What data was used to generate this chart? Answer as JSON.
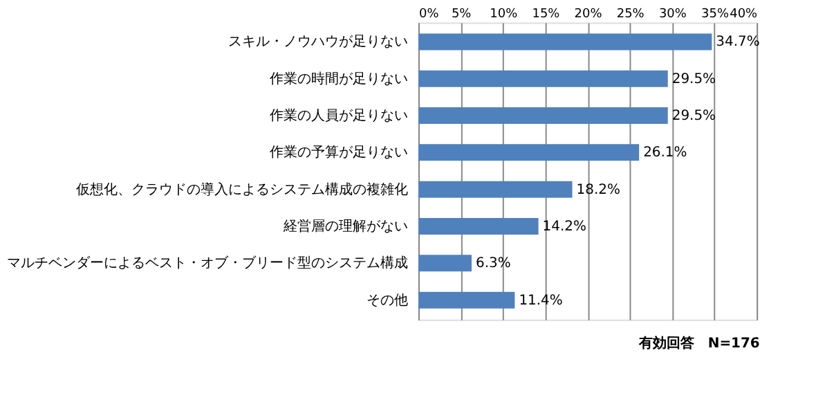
{
  "chart_data": {
    "type": "bar",
    "orientation": "horizontal",
    "categories": [
      "スキル・ノウハウが足りない",
      "作業の時間が足りない",
      "作業の人員が足りない",
      "作業の予算が足りない",
      "仮想化、クラウドの導入によるシステム構成の複雑化",
      "経営層の理解がない",
      "マルチベンダーによるベスト・オブ・ブリード型のシステム構成",
      "その他"
    ],
    "values": [
      34.7,
      29.5,
      29.5,
      26.1,
      18.2,
      14.2,
      6.3,
      11.4
    ],
    "value_labels": [
      "34.7%",
      "29.5%",
      "29.5%",
      "26.1%",
      "18.2%",
      "14.2%",
      "6.3%",
      "11.4%"
    ],
    "color": "#4f81bd",
    "xlim": [
      0,
      40
    ],
    "xticks": [
      {
        "value": 0,
        "label": "0%"
      },
      {
        "value": 5,
        "label": "5%"
      },
      {
        "value": 10,
        "label": "10%"
      },
      {
        "value": 15,
        "label": "15%"
      },
      {
        "value": 20,
        "label": "20%"
      },
      {
        "value": 25,
        "label": "25%"
      },
      {
        "value": 30,
        "label": "30%"
      },
      {
        "value": 35,
        "label": "35%"
      },
      {
        "value": 40,
        "label": "40%"
      }
    ],
    "grid": "x",
    "annotations": [
      "有効回答　N=176"
    ]
  }
}
